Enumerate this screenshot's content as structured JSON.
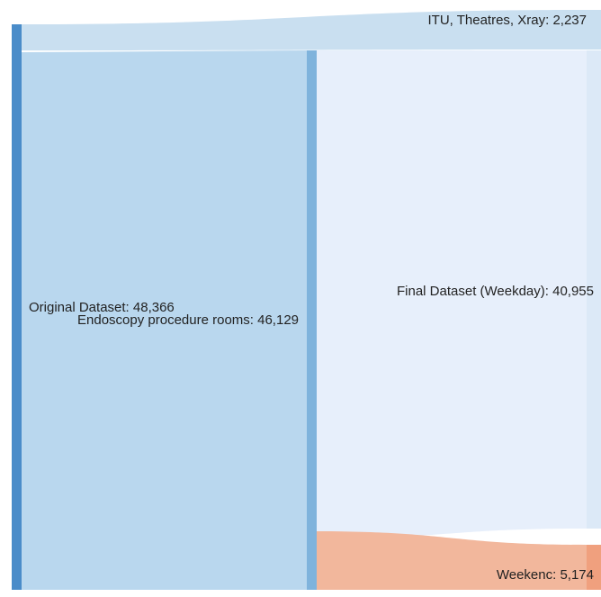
{
  "chart_data": {
    "type": "sankey",
    "nodes": [
      {
        "id": "original",
        "label": "Original Dataset: 48,366",
        "value": 48366,
        "color": "#4a8cc9"
      },
      {
        "id": "endoscopy",
        "label": "Endoscopy procedure rooms: 46,129",
        "value": 46129,
        "color": "#7fb3dc"
      },
      {
        "id": "itu",
        "label": "ITU, Theatres, Xray: 2,237",
        "value": 2237,
        "color": "#c9dff0"
      },
      {
        "id": "final",
        "label": "Final Dataset (Weekday): 40,955",
        "value": 40955,
        "color": "#dce9f7"
      },
      {
        "id": "weekend",
        "label": "Weekenc: 5,174",
        "value": 5174,
        "color": "#f0a07e"
      }
    ],
    "links": [
      {
        "source": "original",
        "target": "itu",
        "value": 2237,
        "color": "#c9dff0"
      },
      {
        "source": "original",
        "target": "endoscopy",
        "value": 46129,
        "color": "#b9d7ee"
      },
      {
        "source": "endoscopy",
        "target": "final",
        "value": 40955,
        "color": "#e7effb"
      },
      {
        "source": "endoscopy",
        "target": "weekend",
        "value": 5174,
        "color": "#f2b79c"
      }
    ]
  }
}
